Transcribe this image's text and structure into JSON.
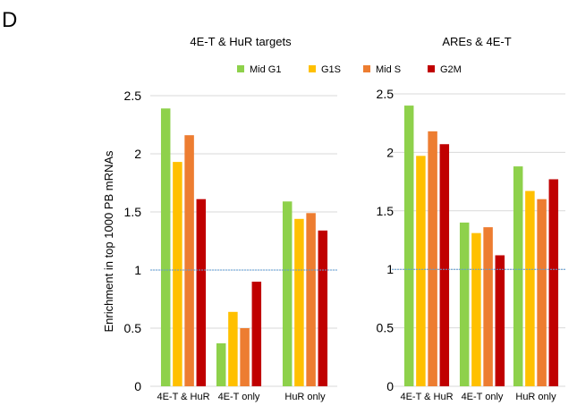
{
  "panel_label": "D",
  "colors": {
    "Mid G1": "#8ed14b",
    "G1S": "#ffc000",
    "Mid S": "#ed7d31",
    "G2M": "#c00000",
    "reference_line": "#5b9bd5",
    "gridline": "#d9d9d9"
  },
  "chart_data": [
    {
      "type": "bar",
      "title": "4E-T & HuR targets",
      "ylabel": "Enrichment in top 1000 PB mRNAs",
      "ylim": [
        0,
        2.5
      ],
      "yticks": [
        "0",
        "0.5",
        "1",
        "1.5",
        "2",
        "2.5"
      ],
      "reference_line": 1,
      "grid": true,
      "legend": "top",
      "categories": [
        "4E-T & HuR",
        "4E-T only",
        "HuR only"
      ],
      "series": [
        {
          "name": "Mid G1",
          "values": [
            2.39,
            0.37,
            1.59
          ]
        },
        {
          "name": "G1S",
          "values": [
            1.93,
            0.64,
            1.44
          ]
        },
        {
          "name": "Mid S",
          "values": [
            2.16,
            0.5,
            1.49
          ]
        },
        {
          "name": "G2M",
          "values": [
            1.61,
            0.9,
            1.34
          ]
        }
      ]
    },
    {
      "type": "bar",
      "title": "AREs & 4E-T",
      "ylim": [
        0,
        2.5
      ],
      "yticks": [
        "0",
        "0.5",
        "1",
        "1.5",
        "2",
        "2.5"
      ],
      "reference_line": 1,
      "grid": true,
      "categories": [
        "4E-T & HuR",
        "4E-T only",
        "HuR only"
      ],
      "series": [
        {
          "name": "Mid G1",
          "values": [
            2.4,
            1.4,
            1.88
          ]
        },
        {
          "name": "G1S",
          "values": [
            1.97,
            1.31,
            1.67
          ]
        },
        {
          "name": "Mid S",
          "values": [
            2.18,
            1.36,
            1.6
          ]
        },
        {
          "name": "G2M",
          "values": [
            2.07,
            1.12,
            1.77
          ]
        }
      ]
    }
  ]
}
